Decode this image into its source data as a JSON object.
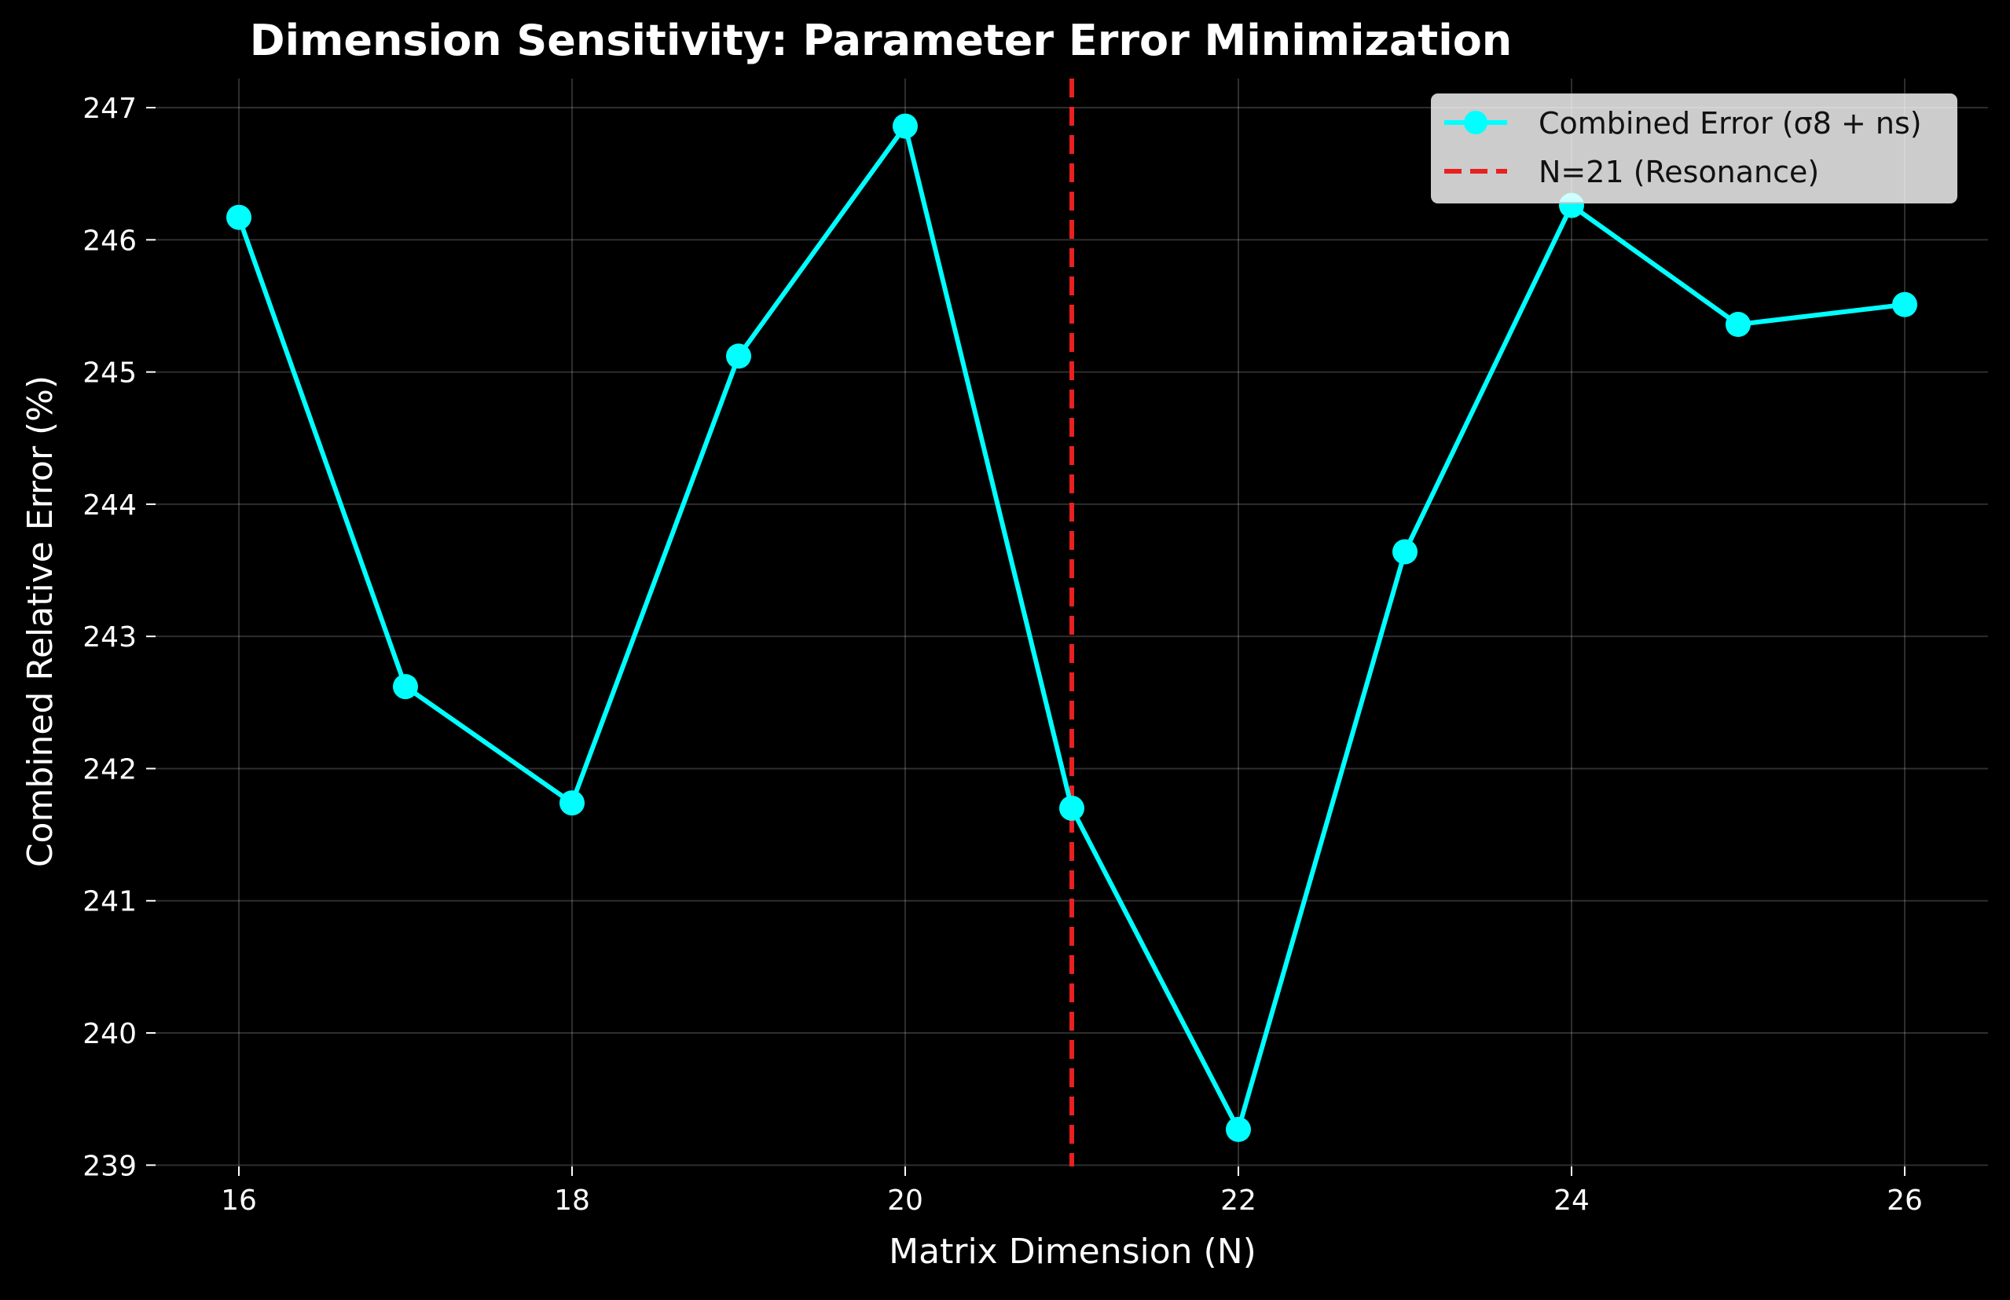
{
  "chart_data": {
    "type": "line",
    "title": "Dimension Sensitivity: Parameter Error Minimization",
    "xlabel": "Matrix Dimension (N)",
    "ylabel": "Combined Relative Error (%)",
    "xlim": [
      15.5,
      26.5
    ],
    "ylim": [
      238.99,
      247.22
    ],
    "xticks": [
      16,
      18,
      20,
      22,
      24,
      26
    ],
    "yticks": [
      239,
      240,
      241,
      242,
      243,
      244,
      245,
      246,
      247
    ],
    "grid": true,
    "legend_position": "top-right",
    "background": "#000000",
    "series": [
      {
        "name": "Combined Error (σ8 + ns)",
        "color": "#00ffff",
        "marker": "circle",
        "x": [
          16,
          17,
          18,
          19,
          20,
          21,
          22,
          23,
          24,
          25,
          26
        ],
        "y": [
          246.17,
          242.62,
          241.74,
          245.12,
          246.86,
          241.7,
          239.27,
          243.64,
          246.26,
          245.36,
          245.51
        ]
      }
    ],
    "reference_line": {
      "name": "N=21 (Resonance)",
      "x": 21,
      "color": "#e82020",
      "style": "dashed"
    }
  }
}
